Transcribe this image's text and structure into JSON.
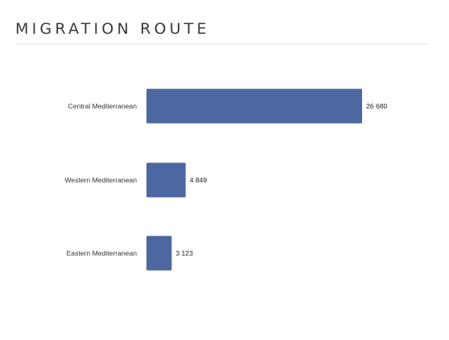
{
  "header": {
    "title": "MIGRATION ROUTE"
  },
  "chart_data": {
    "type": "bar",
    "orientation": "horizontal",
    "categories": [
      "Central Mediterranean",
      "Western Mediterranean",
      "Eastern Mediterranean"
    ],
    "values": [
      26680,
      4849,
      3123
    ],
    "value_labels": [
      "26 680",
      "4 849",
      "3 123"
    ],
    "xlim": [
      0,
      26680
    ],
    "grid": false,
    "legend": "none",
    "bar_color": "#4d67a1"
  }
}
